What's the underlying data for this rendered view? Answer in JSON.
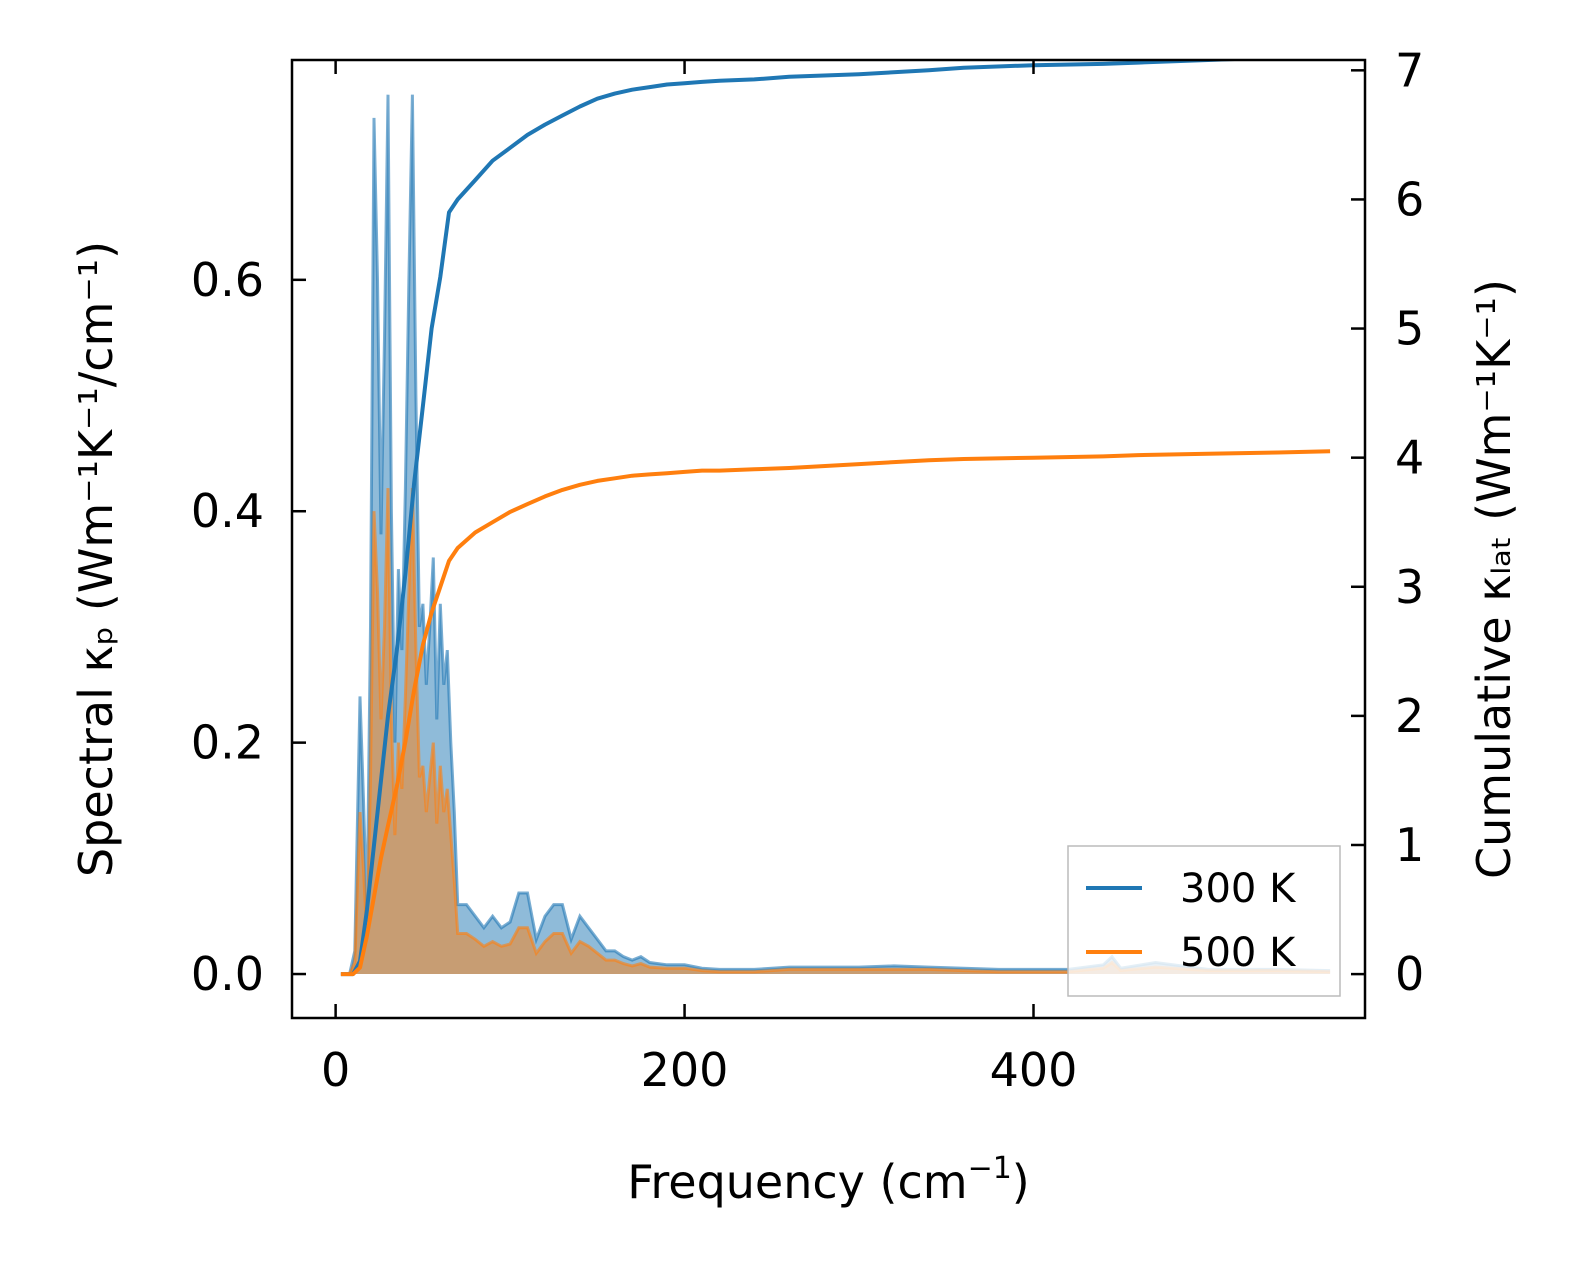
{
  "chart_data": {
    "type": "line",
    "title": "",
    "xlabel": {
      "main": "Frequency (cm",
      "sup": "−1",
      "tail": ")"
    },
    "ylabel_left": "Spectral κₚ (Wm⁻¹K⁻¹/cm⁻¹)",
    "ylabel_right": "Cumulative κₗₐₜ (Wm⁻¹K⁻¹)",
    "xlim": [
      -25,
      590
    ],
    "ylim_left": [
      -0.038,
      0.79
    ],
    "ylim_right": [
      -0.34,
      7.08
    ],
    "x_ticks": [
      0,
      200,
      400
    ],
    "x_tick_labels": [
      "0",
      "200",
      "400"
    ],
    "y_left_ticks": [
      0.0,
      0.2,
      0.4,
      0.6
    ],
    "y_left_tick_labels": [
      "0.0",
      "0.2",
      "0.4",
      "0.6"
    ],
    "y_right_ticks": [
      0,
      1,
      2,
      3,
      4,
      5,
      6,
      7
    ],
    "y_right_tick_labels": [
      "0",
      "1",
      "2",
      "3",
      "4",
      "5",
      "6",
      "7"
    ],
    "legend": {
      "position": "lower-right",
      "entries": [
        "300 K",
        "500 K"
      ]
    },
    "colors": {
      "300K": "#1f77b4",
      "500K": "#ff7f0e"
    },
    "series": [
      {
        "name": "300 K",
        "axis": "right",
        "kind": "cumulative",
        "x": [
          3,
          10,
          14,
          18,
          22,
          26,
          30,
          35,
          40,
          45,
          50,
          55,
          60,
          65,
          70,
          80,
          90,
          100,
          110,
          120,
          130,
          140,
          150,
          160,
          170,
          180,
          190,
          200,
          210,
          220,
          240,
          260,
          300,
          340,
          360,
          400,
          440,
          460,
          500,
          540,
          570
        ],
        "values": [
          0,
          0,
          0.1,
          0.5,
          1.0,
          1.5,
          2.0,
          2.5,
          3.1,
          3.8,
          4.4,
          5.0,
          5.4,
          5.9,
          6.0,
          6.15,
          6.3,
          6.4,
          6.5,
          6.58,
          6.65,
          6.72,
          6.78,
          6.82,
          6.85,
          6.87,
          6.89,
          6.9,
          6.91,
          6.92,
          6.93,
          6.95,
          6.97,
          7.0,
          7.02,
          7.04,
          7.05,
          7.06,
          7.08,
          7.1,
          7.1
        ]
      },
      {
        "name": "500 K",
        "axis": "right",
        "kind": "cumulative",
        "x": [
          3,
          10,
          14,
          18,
          22,
          26,
          30,
          35,
          40,
          45,
          50,
          55,
          60,
          65,
          70,
          80,
          90,
          100,
          110,
          120,
          130,
          140,
          150,
          160,
          170,
          180,
          190,
          200,
          210,
          220,
          240,
          260,
          300,
          340,
          360,
          400,
          440,
          460,
          500,
          540,
          570
        ],
        "values": [
          0,
          0,
          0.05,
          0.3,
          0.6,
          0.9,
          1.15,
          1.45,
          1.8,
          2.2,
          2.55,
          2.8,
          3.0,
          3.2,
          3.3,
          3.42,
          3.5,
          3.58,
          3.64,
          3.7,
          3.75,
          3.79,
          3.82,
          3.84,
          3.86,
          3.87,
          3.88,
          3.89,
          3.9,
          3.9,
          3.91,
          3.92,
          3.95,
          3.98,
          3.99,
          4.0,
          4.01,
          4.02,
          4.03,
          4.04,
          4.05
        ]
      },
      {
        "name": "300 K",
        "axis": "left",
        "kind": "spectral",
        "x": [
          3,
          8,
          11,
          14,
          16,
          18,
          20,
          22,
          24,
          26,
          28,
          30,
          32,
          34,
          36,
          38,
          40,
          42,
          44,
          46,
          48,
          50,
          52,
          54,
          56,
          58,
          60,
          62,
          64,
          66,
          68,
          70,
          75,
          80,
          85,
          90,
          95,
          100,
          105,
          110,
          115,
          120,
          125,
          130,
          135,
          140,
          145,
          150,
          155,
          160,
          165,
          170,
          175,
          180,
          190,
          200,
          210,
          220,
          240,
          260,
          280,
          300,
          320,
          340,
          360,
          380,
          400,
          420,
          440,
          445,
          450,
          470,
          500,
          540,
          570
        ],
        "values": [
          0,
          0,
          0.02,
          0.24,
          0.15,
          0.05,
          0.3,
          0.74,
          0.6,
          0.38,
          0.55,
          0.76,
          0.4,
          0.2,
          0.35,
          0.28,
          0.42,
          0.6,
          0.76,
          0.5,
          0.3,
          0.32,
          0.25,
          0.3,
          0.36,
          0.22,
          0.32,
          0.25,
          0.28,
          0.2,
          0.14,
          0.06,
          0.06,
          0.05,
          0.04,
          0.05,
          0.04,
          0.045,
          0.07,
          0.07,
          0.03,
          0.05,
          0.06,
          0.06,
          0.03,
          0.05,
          0.04,
          0.03,
          0.02,
          0.02,
          0.015,
          0.012,
          0.015,
          0.01,
          0.008,
          0.008,
          0.005,
          0.004,
          0.004,
          0.006,
          0.006,
          0.006,
          0.007,
          0.006,
          0.005,
          0.004,
          0.004,
          0.004,
          0.008,
          0.015,
          0.005,
          0.01,
          0.004,
          0.004,
          0.003
        ]
      },
      {
        "name": "500 K",
        "axis": "left",
        "kind": "spectral",
        "x": [
          3,
          8,
          11,
          14,
          16,
          18,
          20,
          22,
          24,
          26,
          28,
          30,
          32,
          34,
          36,
          38,
          40,
          42,
          44,
          46,
          48,
          50,
          52,
          54,
          56,
          58,
          60,
          62,
          64,
          66,
          68,
          70,
          75,
          80,
          85,
          90,
          95,
          100,
          105,
          110,
          115,
          120,
          125,
          130,
          135,
          140,
          145,
          150,
          155,
          160,
          165,
          170,
          175,
          180,
          190,
          200,
          210,
          220,
          240,
          260,
          280,
          300,
          320,
          340,
          360,
          380,
          400,
          420,
          440,
          445,
          450,
          470,
          500,
          540,
          570
        ],
        "values": [
          0,
          0,
          0.01,
          0.14,
          0.09,
          0.03,
          0.17,
          0.4,
          0.33,
          0.22,
          0.3,
          0.42,
          0.22,
          0.12,
          0.2,
          0.16,
          0.24,
          0.33,
          0.42,
          0.28,
          0.17,
          0.18,
          0.14,
          0.17,
          0.2,
          0.13,
          0.18,
          0.14,
          0.16,
          0.12,
          0.08,
          0.035,
          0.035,
          0.03,
          0.024,
          0.028,
          0.024,
          0.026,
          0.04,
          0.04,
          0.018,
          0.028,
          0.035,
          0.035,
          0.018,
          0.028,
          0.024,
          0.018,
          0.012,
          0.012,
          0.009,
          0.007,
          0.009,
          0.006,
          0.005,
          0.005,
          0.003,
          0.002,
          0.002,
          0.004,
          0.004,
          0.004,
          0.004,
          0.004,
          0.003,
          0.002,
          0.002,
          0.002,
          0.005,
          0.01,
          0.003,
          0.006,
          0.003,
          0.003,
          0.002
        ]
      }
    ]
  }
}
